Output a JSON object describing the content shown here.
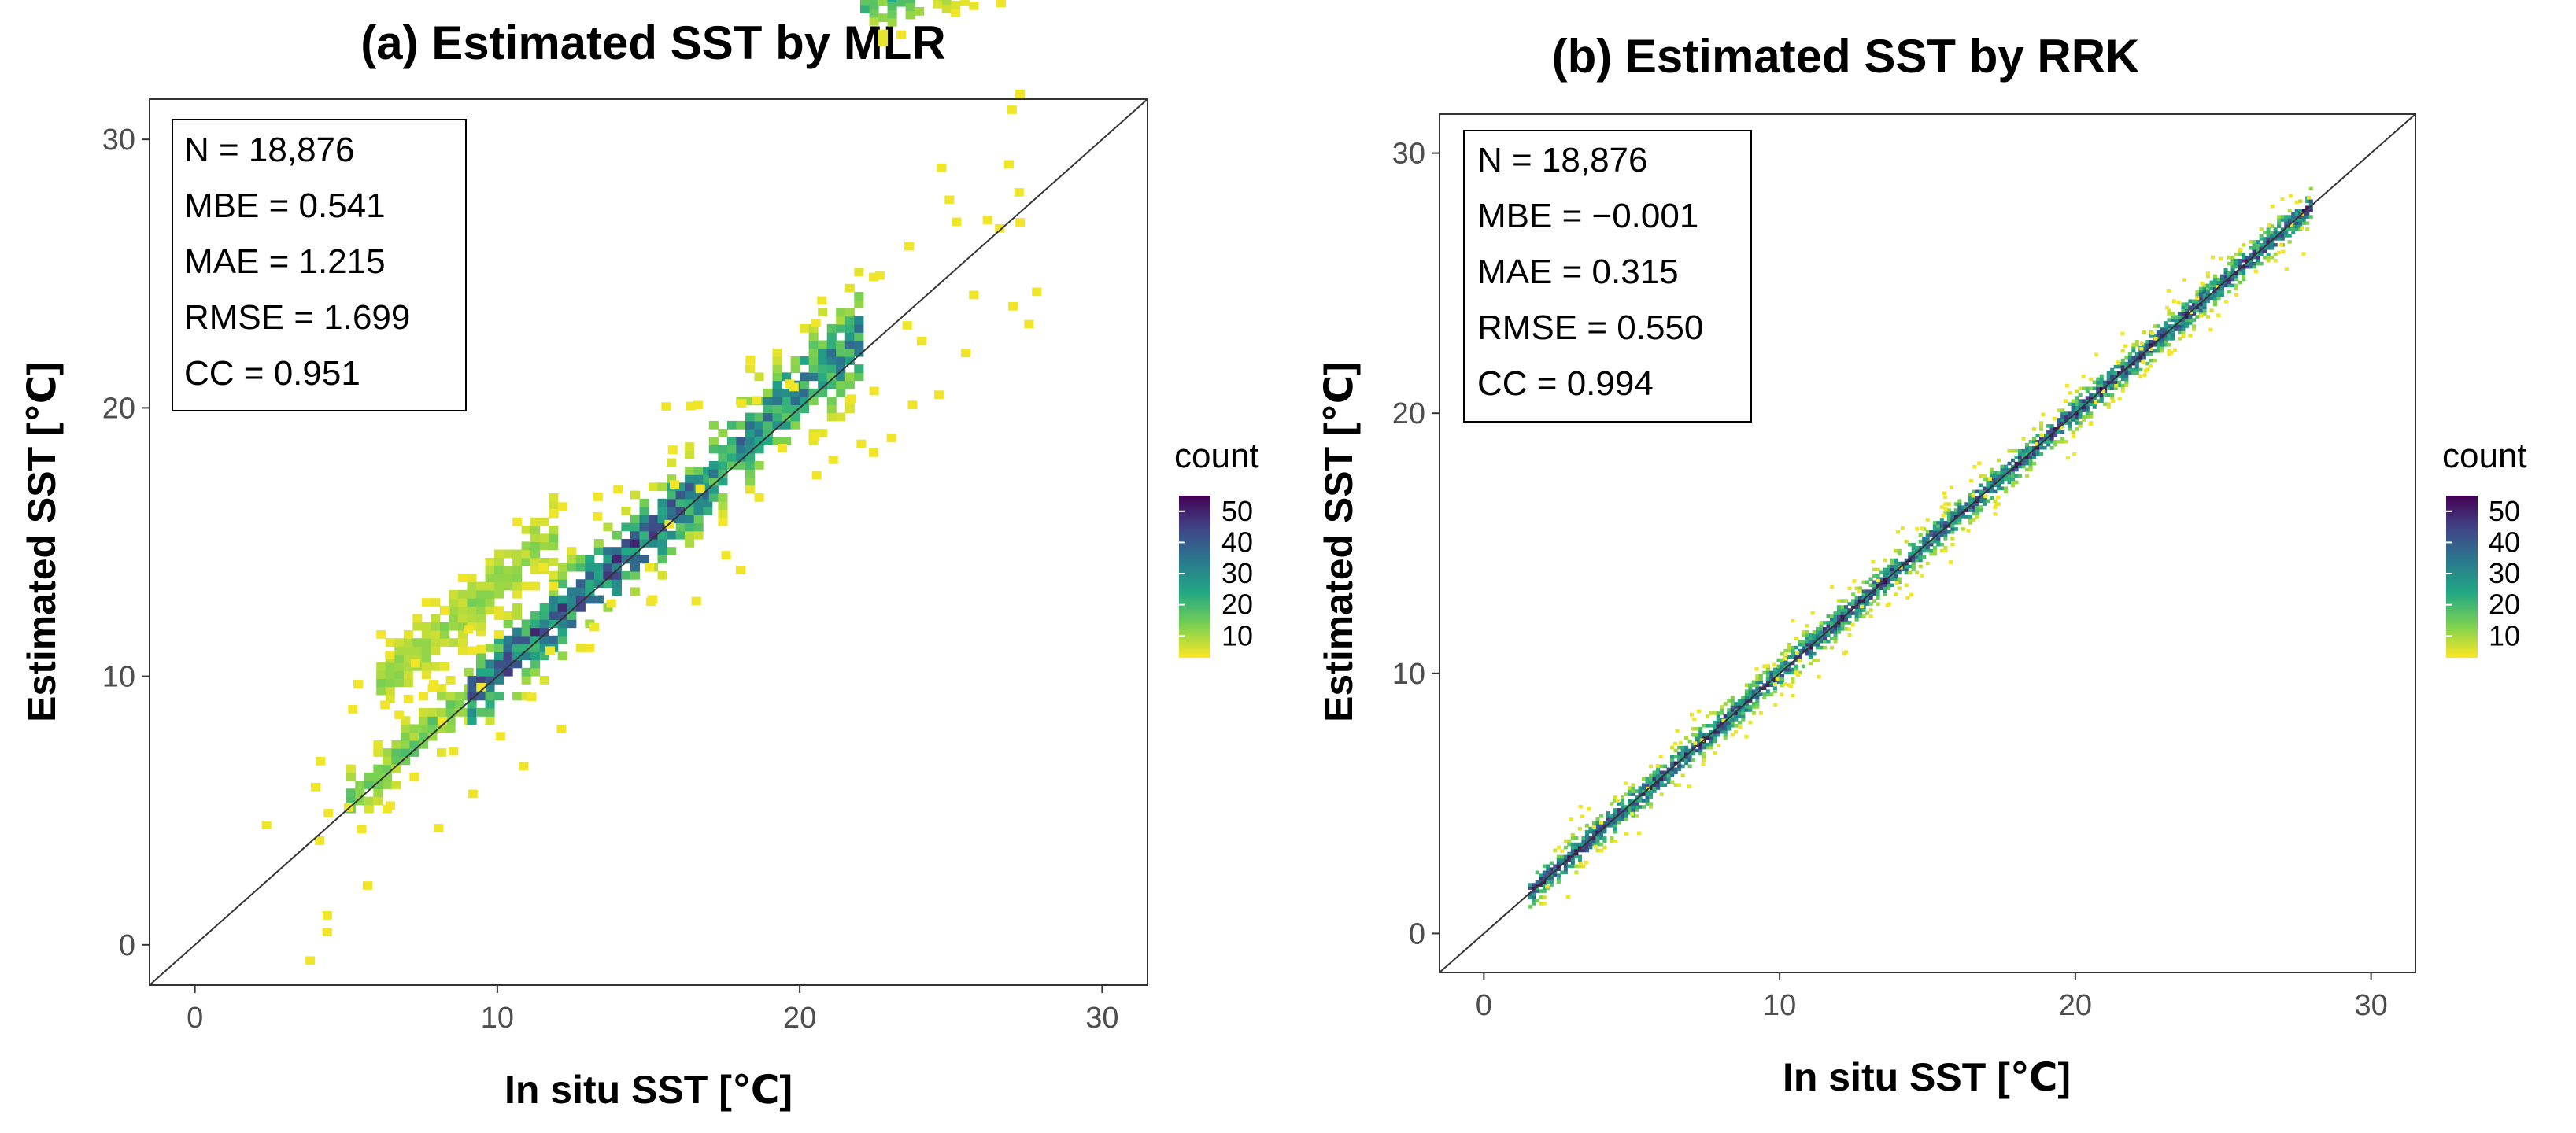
{
  "chart_data": [
    {
      "type": "heatmap",
      "title": "(a) Estimated SST by MLR",
      "xlabel": "In situ SST [℃]",
      "ylabel": "Estimated SST [℃]",
      "xlim": [
        -1.5,
        31.5
      ],
      "ylim": [
        -1.5,
        31.5
      ],
      "x_ticks": [
        0,
        10,
        20,
        30
      ],
      "y_ticks": [
        0,
        10,
        20,
        30
      ],
      "reference_line": "y = x",
      "grid": false,
      "stats": {
        "n": "N = 18,876",
        "mbe": "MBE = 0.541",
        "mae": "MAE = 1.215",
        "rmse": "RMSE = 1.699",
        "cc": "CC = 0.951"
      },
      "legend": {
        "title": "count",
        "position": "right",
        "ticks": [
          10,
          20,
          30,
          40,
          50
        ]
      },
      "bins": {
        "model": "scattered",
        "bin_width": 0.3,
        "regions": [
          {
            "x0": 5,
            "x1": 9,
            "slope": 1.0,
            "offset": 0.3,
            "width": 1.6,
            "max_count": 18
          },
          {
            "x0": 9,
            "x1": 17,
            "slope": 1.0,
            "offset": 0.2,
            "width": 2.2,
            "max_count": 52
          },
          {
            "x0": 17,
            "x1": 22,
            "slope": 1.0,
            "offset": 0.6,
            "width": 2.6,
            "max_count": 40
          },
          {
            "x0": 22,
            "x1": 29,
            "slope": 0.45,
            "offset": 0.8,
            "width": 2.0,
            "max_count": 25
          },
          {
            "x0": 6,
            "x1": 12,
            "slope": 1.0,
            "offset": 3.5,
            "width": 2.0,
            "max_count": 12
          }
        ]
      }
    },
    {
      "type": "heatmap",
      "title": "(b) Estimated SST by RRK",
      "xlabel": "In situ SST [℃]",
      "ylabel": "Estimated SST [℃]",
      "xlim": [
        -1.5,
        31.5
      ],
      "ylim": [
        -1.5,
        31.5
      ],
      "x_ticks": [
        0,
        10,
        20,
        30
      ],
      "y_ticks": [
        0,
        10,
        20,
        30
      ],
      "reference_line": "y = x",
      "grid": false,
      "stats": {
        "n": "N = 18,876",
        "mbe": "MBE = −0.001",
        "mae": "MAE = 0.315",
        "rmse": "RMSE = 0.550",
        "cc": "CC = 0.994"
      },
      "legend": {
        "title": "count",
        "position": "right",
        "ticks": [
          10,
          20,
          30,
          40,
          50
        ]
      },
      "bins": {
        "model": "tight",
        "bin_width": 0.12,
        "regions": [
          {
            "x0": 1.5,
            "x1": 28,
            "slope": 1.0,
            "offset": 0.0,
            "width": 0.9,
            "max_count": 55
          }
        ]
      }
    }
  ]
}
